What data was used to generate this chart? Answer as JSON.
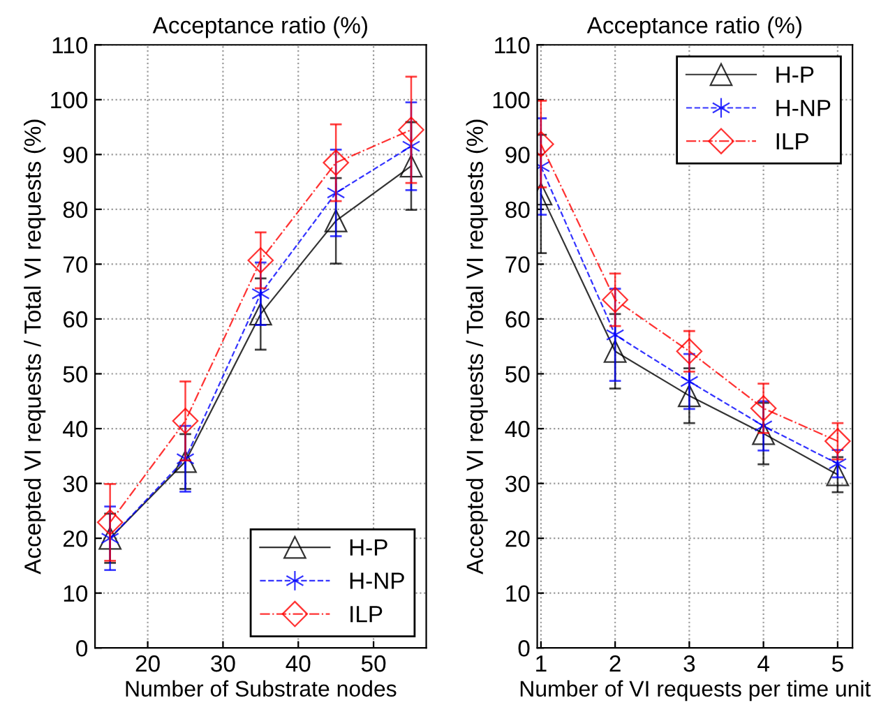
{
  "chart_data": [
    {
      "type": "line",
      "title": "Acceptance ratio (%)",
      "xlabel": "Number of Substrate nodes",
      "ylabel": "Accepted VI requests / Total VI requests (%)",
      "x": [
        15,
        25,
        35,
        45,
        55
      ],
      "xlim": [
        13,
        57
      ],
      "xticks": [
        20,
        30,
        40,
        50
      ],
      "ylim": [
        0,
        110
      ],
      "yticks": [
        0,
        10,
        20,
        30,
        40,
        50,
        60,
        70,
        80,
        90,
        100,
        110
      ],
      "grid": true,
      "legend": "bottom right",
      "series": [
        {
          "name": "H-P",
          "color": "#000000",
          "marker": "triangle",
          "line_style": "solid",
          "values": [
            20,
            34,
            60.9,
            77.9,
            87.9
          ],
          "errors": [
            4.5,
            5,
            6.5,
            7.8,
            8
          ]
        },
        {
          "name": "H-NP",
          "color": "#0000ff",
          "marker": "cross",
          "line_style": "dashed",
          "values": [
            20,
            34.5,
            64.6,
            83,
            91.5
          ],
          "errors": [
            5.8,
            6,
            5.7,
            7.9,
            8
          ]
        },
        {
          "name": "ILP",
          "color": "#ff0000",
          "marker": "diamond",
          "line_style": "dashdot",
          "values": [
            22.9,
            41.4,
            70.7,
            88.5,
            94.5
          ],
          "errors": [
            7,
            7.2,
            5.1,
            7,
            9.7
          ]
        }
      ]
    },
    {
      "type": "line",
      "title": "Acceptance ratio (%)",
      "xlabel": "Number of VI requests per time unit",
      "ylabel": "Accepted VI requests / Total VI requests (%)",
      "x": [
        1,
        2,
        3,
        4,
        5
      ],
      "xlim": [
        0.95,
        5.2
      ],
      "xticks": [
        1,
        2,
        3,
        4,
        5
      ],
      "ylim": [
        0,
        110
      ],
      "yticks": [
        0,
        10,
        20,
        30,
        40,
        50,
        60,
        70,
        80,
        90,
        100,
        110
      ],
      "grid": true,
      "legend": "top right",
      "series": [
        {
          "name": "H-P",
          "color": "#000000",
          "marker": "triangle",
          "line_style": "solid",
          "values": [
            82.8,
            54.1,
            46,
            39.1,
            31.6
          ],
          "errors": [
            10.8,
            6.8,
            5,
            5.6,
            3.2
          ]
        },
        {
          "name": "H-NP",
          "color": "#0000ff",
          "marker": "cross",
          "line_style": "dashed",
          "values": [
            87.8,
            57.1,
            48.6,
            40.5,
            33.6
          ],
          "errors": [
            8.8,
            8.4,
            5,
            4.5,
            2.5
          ]
        },
        {
          "name": "ILP",
          "color": "#ff0000",
          "marker": "diamond",
          "line_style": "dashdot",
          "values": [
            91.9,
            63.5,
            54.1,
            43.7,
            37.7
          ],
          "errors": [
            7.9,
            4.8,
            3.7,
            4.5,
            3.3
          ]
        }
      ]
    }
  ]
}
